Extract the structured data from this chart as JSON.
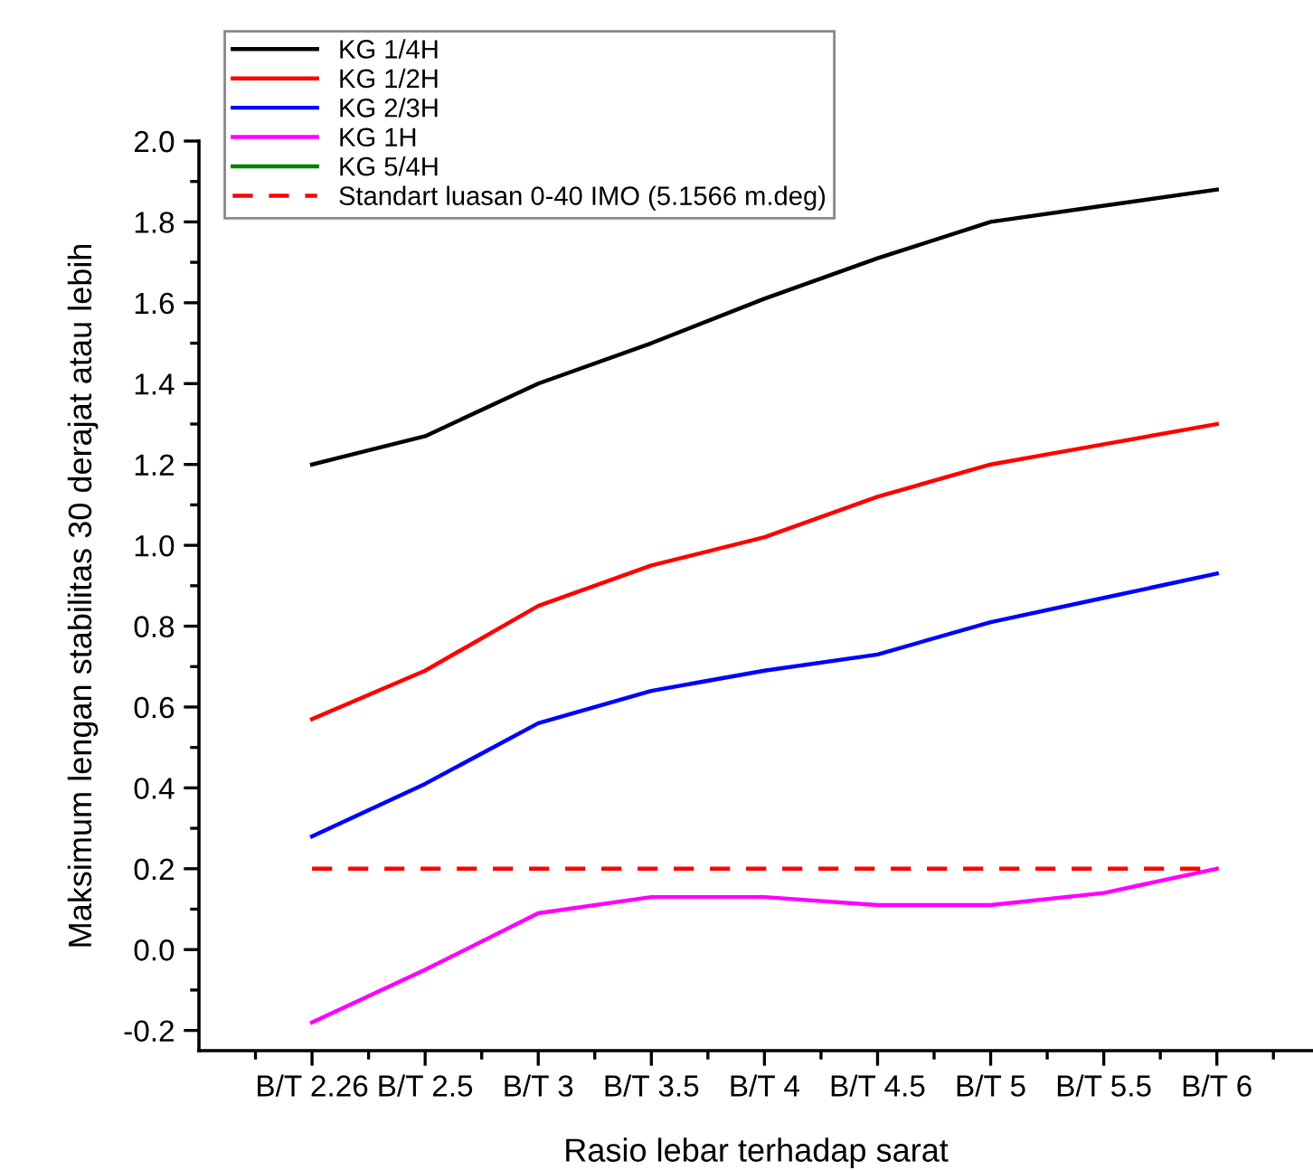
{
  "chart_data": {
    "type": "line",
    "xlabel": "Rasio lebar terhadap sarat",
    "ylabel": "Maksimum lengan stabilitas 30 derajat atau lebih",
    "categories": [
      "B/T 2.26",
      "B/T 2.5",
      "B/T 3",
      "B/T 3.5",
      "B/T 4",
      "B/T 4.5",
      "B/T 5",
      "B/T 5.5",
      "B/T 6"
    ],
    "series": [
      {
        "name": "KG 1/4H",
        "color": "#000000",
        "values": [
          1.2,
          1.27,
          1.4,
          1.5,
          1.61,
          1.71,
          1.8,
          1.84,
          1.88
        ]
      },
      {
        "name": "KG 1/2H",
        "color": "#ff0000",
        "values": [
          0.57,
          0.69,
          0.85,
          0.95,
          1.02,
          1.12,
          1.2,
          1.25,
          1.3
        ]
      },
      {
        "name": "KG 2/3H",
        "color": "#0000ff",
        "values": [
          0.28,
          0.41,
          0.56,
          0.64,
          0.69,
          0.73,
          0.81,
          0.87,
          0.93
        ]
      },
      {
        "name": "KG 1H",
        "color": "#ff00ff",
        "values": [
          -0.18,
          -0.05,
          0.09,
          0.13,
          0.13,
          0.11,
          0.11,
          0.14,
          0.2
        ]
      },
      {
        "name": "KG 5/4H",
        "color": "#008000",
        "values": [
          null,
          null,
          null,
          null,
          null,
          null,
          null,
          null,
          null
        ]
      }
    ],
    "ref_lines": [
      {
        "axis": "y",
        "value": 0.2,
        "label": "Standart luasan 0-40 IMO (5.1566 m.deg)",
        "color": "#ff0000",
        "line_style": "dashed"
      }
    ],
    "ylim": [
      -0.25,
      2.0
    ],
    "yticks": [
      {
        "value": -0.2,
        "label": "-0.2"
      },
      {
        "value": 0,
        "label": "0.0"
      },
      0.2,
      0.4,
      0.6,
      0.8,
      {
        "value": 1,
        "label": "1.0"
      },
      1.2,
      1.4,
      1.6,
      1.8,
      {
        "value": 2,
        "label": "2.0"
      }
    ],
    "grid": false,
    "legend": "top left",
    "line_style": "solid",
    "marker": "none"
  }
}
